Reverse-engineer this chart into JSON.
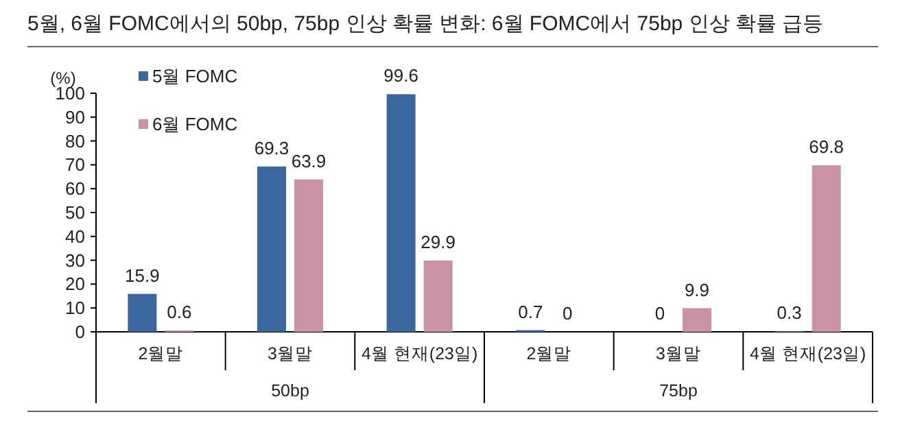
{
  "chart_data": {
    "type": "bar",
    "title": "5월, 6월 FOMC에서의 50bp, 75bp 인상 확률 변화: 6월 FOMC에서 75bp 인상 확률 급등",
    "ylabel": "(%)",
    "categories": [
      "2월말",
      "3월말",
      "4월 현재(23일)",
      "2월말",
      "3월말",
      "4월 현재(23일)"
    ],
    "series": [
      {
        "name": "5월 FOMC",
        "color": "#3c679e",
        "values": [
          15.9,
          69.3,
          99.6,
          0.7,
          0,
          0.3
        ]
      },
      {
        "name": "6월 FOMC",
        "color": "#c993a5",
        "values": [
          0.6,
          63.9,
          29.9,
          0,
          9.9,
          69.8
        ]
      }
    ],
    "annotations": [
      "50bp",
      "75bp"
    ],
    "ylim": [
      0,
      100
    ],
    "yticks": [
      0,
      10,
      20,
      30,
      40,
      50,
      60,
      70,
      80,
      90,
      100
    ],
    "data_labels": true,
    "legend": "top left",
    "grid": false
  }
}
